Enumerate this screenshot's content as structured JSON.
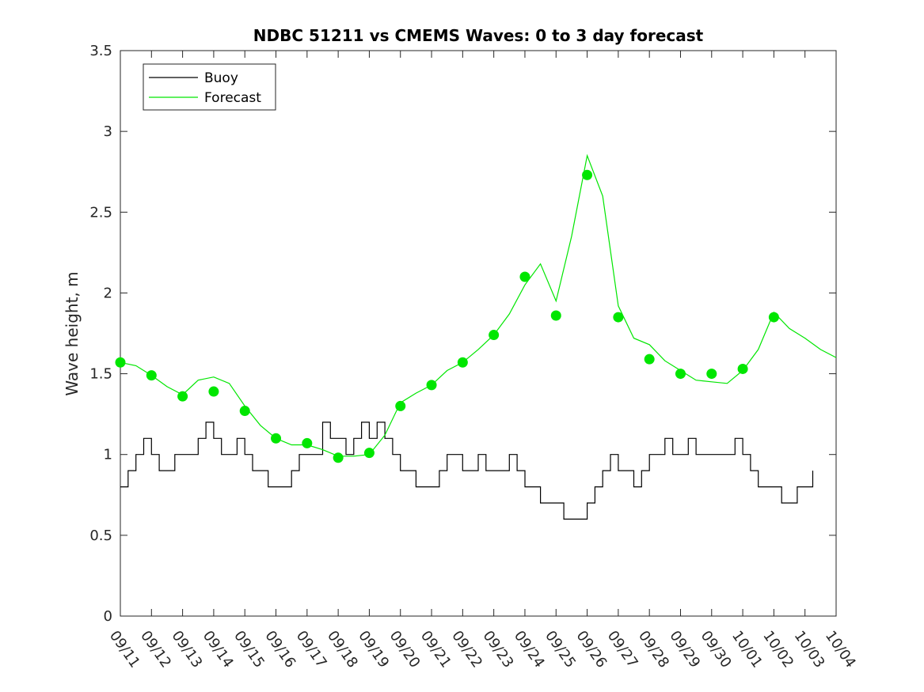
{
  "chart_data": {
    "type": "line",
    "title": "NDBC 51211 vs CMEMS Waves: 0 to 3 day forecast",
    "xlabel": "",
    "ylabel": "Wave height, m",
    "xlim": [
      "09/11",
      "10/04"
    ],
    "ylim": [
      0,
      3.5
    ],
    "x_ticks": [
      "09/11",
      "09/12",
      "09/13",
      "09/14",
      "09/15",
      "09/16",
      "09/17",
      "09/18",
      "09/19",
      "09/20",
      "09/21",
      "09/22",
      "09/23",
      "09/24",
      "09/25",
      "09/26",
      "09/27",
      "09/28",
      "09/29",
      "09/30",
      "10/01",
      "10/02",
      "10/03",
      "10/04"
    ],
    "y_ticks": [
      0,
      0.5,
      1,
      1.5,
      2,
      2.5,
      3,
      3.5
    ],
    "y_tick_labels": [
      "0",
      "0.5",
      "1",
      "1.5",
      "2",
      "2.5",
      "3",
      "3.5"
    ],
    "legend": {
      "placement": "top-left",
      "entries": [
        "Buoy",
        "Forecast"
      ]
    },
    "colors": {
      "buoy": "#000000",
      "forecast": "#00e600"
    },
    "grid": false,
    "buoy_color": "#000000",
    "forecast_color": "#00e600",
    "series": [
      {
        "name": "Buoy",
        "x": [
          "09/11 00:00",
          "09/11 06:00",
          "09/11 12:00",
          "09/11 18:00",
          "09/12 00:00",
          "09/12 06:00",
          "09/12 12:00",
          "09/12 18:00",
          "09/13 00:00",
          "09/13 06:00",
          "09/13 12:00",
          "09/13 18:00",
          "09/14 00:00",
          "09/14 06:00",
          "09/14 12:00",
          "09/14 18:00",
          "09/15 00:00",
          "09/15 06:00",
          "09/15 12:00",
          "09/15 18:00",
          "09/16 00:00",
          "09/16 06:00",
          "09/16 12:00",
          "09/16 18:00",
          "09/17 00:00",
          "09/17 06:00",
          "09/17 12:00",
          "09/17 18:00",
          "09/18 00:00",
          "09/18 06:00",
          "09/18 12:00",
          "09/18 18:00",
          "09/19 00:00",
          "09/19 06:00",
          "09/19 12:00",
          "09/19 18:00",
          "09/20 00:00",
          "09/20 06:00",
          "09/20 12:00",
          "09/20 18:00",
          "09/21 00:00",
          "09/21 06:00",
          "09/21 12:00",
          "09/21 18:00",
          "09/22 00:00",
          "09/22 06:00",
          "09/22 12:00",
          "09/22 18:00",
          "09/23 00:00",
          "09/23 06:00",
          "09/23 12:00",
          "09/23 18:00",
          "09/24 00:00",
          "09/24 06:00",
          "09/24 12:00",
          "09/24 18:00",
          "09/25 00:00",
          "09/25 06:00",
          "09/25 12:00",
          "09/25 18:00",
          "09/26 00:00",
          "09/26 06:00",
          "09/26 12:00",
          "09/26 18:00",
          "09/27 00:00",
          "09/27 06:00",
          "09/27 12:00",
          "09/27 18:00",
          "09/28 00:00",
          "09/28 06:00",
          "09/28 12:00",
          "09/28 18:00",
          "09/29 00:00",
          "09/29 06:00",
          "09/29 12:00",
          "09/29 18:00",
          "09/30 00:00",
          "09/30 06:00",
          "09/30 12:00",
          "09/30 18:00",
          "10/01 00:00",
          "10/01 06:00",
          "10/01 12:00",
          "10/01 18:00",
          "10/02 00:00",
          "10/02 06:00",
          "10/02 12:00",
          "10/02 18:00",
          "10/03 00:00",
          "10/03 06:00"
        ],
        "values": [
          0.8,
          0.9,
          1.0,
          1.1,
          1.0,
          0.9,
          0.9,
          1.0,
          1.0,
          1.0,
          1.1,
          1.2,
          1.1,
          1.0,
          1.0,
          1.1,
          1.0,
          0.9,
          0.9,
          0.8,
          0.8,
          0.8,
          0.9,
          1.0,
          1.0,
          1.0,
          1.2,
          1.1,
          1.1,
          1.0,
          1.1,
          1.2,
          1.1,
          1.2,
          1.1,
          1.0,
          0.9,
          0.9,
          0.8,
          0.8,
          0.8,
          0.9,
          1.0,
          1.0,
          0.9,
          0.9,
          1.0,
          0.9,
          0.9,
          0.9,
          1.0,
          0.9,
          0.8,
          0.8,
          0.7,
          0.7,
          0.7,
          0.6,
          0.6,
          0.6,
          0.7,
          0.8,
          0.9,
          1.0,
          0.9,
          0.9,
          0.8,
          0.9,
          1.0,
          1.0,
          1.1,
          1.0,
          1.0,
          1.1,
          1.0,
          1.0,
          1.0,
          1.0,
          1.0,
          1.1,
          1.0,
          0.9,
          0.8,
          0.8,
          0.8,
          0.7,
          0.7,
          0.8,
          0.8,
          0.9
        ]
      },
      {
        "name": "Forecast",
        "x": [
          "09/11 00:00",
          "09/11 12:00",
          "09/12 00:00",
          "09/12 12:00",
          "09/13 00:00",
          "09/13 12:00",
          "09/14 00:00",
          "09/14 12:00",
          "09/15 00:00",
          "09/15 12:00",
          "09/16 00:00",
          "09/16 12:00",
          "09/17 00:00",
          "09/17 12:00",
          "09/18 00:00",
          "09/18 12:00",
          "09/19 00:00",
          "09/19 12:00",
          "09/20 00:00",
          "09/20 12:00",
          "09/21 00:00",
          "09/21 12:00",
          "09/22 00:00",
          "09/22 12:00",
          "09/23 00:00",
          "09/23 12:00",
          "09/24 00:00",
          "09/24 12:00",
          "09/25 00:00",
          "09/25 12:00",
          "09/26 00:00",
          "09/26 12:00",
          "09/27 00:00",
          "09/27 12:00",
          "09/28 00:00",
          "09/28 12:00",
          "09/29 00:00",
          "09/29 12:00",
          "09/30 00:00",
          "09/30 12:00",
          "10/01 00:00",
          "10/01 12:00",
          "10/02 00:00",
          "10/02 12:00",
          "10/03 00:00",
          "10/03 12:00",
          "10/04 00:00"
        ],
        "values": [
          1.57,
          1.55,
          1.49,
          1.42,
          1.37,
          1.46,
          1.48,
          1.44,
          1.3,
          1.18,
          1.1,
          1.06,
          1.06,
          1.03,
          0.99,
          0.99,
          1.0,
          1.12,
          1.32,
          1.38,
          1.43,
          1.52,
          1.57,
          1.65,
          1.74,
          1.87,
          2.05,
          2.18,
          1.95,
          2.35,
          2.85,
          2.6,
          1.92,
          1.72,
          1.68,
          1.58,
          1.52,
          1.46,
          1.45,
          1.44,
          1.52,
          1.65,
          1.88,
          1.78,
          1.72,
          1.65,
          1.6
        ]
      }
    ],
    "markers": {
      "name": "Forecast analysis points",
      "x": [
        "09/11",
        "09/12",
        "09/13",
        "09/14",
        "09/15",
        "09/16",
        "09/17",
        "09/18",
        "09/19",
        "09/20",
        "09/21",
        "09/22",
        "09/23",
        "09/24",
        "09/25",
        "09/26",
        "09/27",
        "09/28",
        "09/29",
        "09/30",
        "10/01",
        "10/02"
      ],
      "values": [
        1.57,
        1.49,
        1.36,
        1.39,
        1.27,
        1.1,
        1.07,
        0.98,
        1.01,
        1.3,
        1.43,
        1.57,
        1.74,
        2.1,
        1.86,
        2.73,
        1.85,
        1.59,
        1.5,
        1.5,
        1.53,
        1.85
      ]
    }
  }
}
